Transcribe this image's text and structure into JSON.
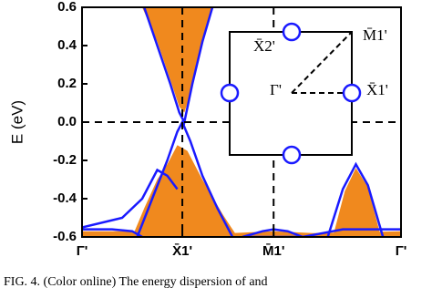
{
  "chart_data": {
    "type": "band",
    "ylabel": "E (eV)",
    "xlim": [
      0,
      3.18
    ],
    "ylim": [
      -0.6,
      0.6
    ],
    "xticks": [
      {
        "value": 0,
        "label": "Γ'"
      },
      {
        "value": 1,
        "label": "X̄1'"
      },
      {
        "value": 1.91,
        "label": "M̄1'"
      },
      {
        "value": 3.18,
        "label": "Γ'"
      }
    ],
    "yticks": [
      -0.6,
      -0.4,
      -0.2,
      {
        "value": 0,
        "label": "0.0"
      },
      0.2,
      0.4,
      0.6
    ],
    "dashed_lines": true,
    "areas": [
      {
        "color": "#f0891e",
        "fill_to": "top",
        "x": [
          0.6,
          0.75,
          0.88,
          0.97,
          1.02,
          1.1,
          1.2,
          1.3
        ],
        "values": [
          0.6,
          0.42,
          0.22,
          0.08,
          0.05,
          0.18,
          0.4,
          0.6
        ]
      },
      {
        "color": "#f0891e",
        "fill_to": "bottom",
        "x": [
          0.5,
          0.62,
          0.75,
          0.85,
          0.95,
          1.05,
          1.2,
          1.4,
          1.55
        ],
        "values": [
          -0.6,
          -0.45,
          -0.3,
          -0.22,
          -0.12,
          -0.15,
          -0.3,
          -0.48,
          -0.6
        ]
      },
      {
        "color": "#f0891e",
        "fill_to": "bottom",
        "x": [
          0,
          0.5,
          1.5,
          1.91,
          2.3,
          3.18
        ],
        "values": [
          -0.57,
          -0.57,
          -0.58,
          -0.57,
          -0.58,
          -0.57
        ]
      },
      {
        "color": "#f0891e",
        "fill_to": "bottom",
        "x": [
          2.5,
          2.62,
          2.73,
          2.85,
          2.98
        ],
        "values": [
          -0.6,
          -0.36,
          -0.24,
          -0.34,
          -0.6
        ]
      }
    ],
    "series": [
      {
        "color": "#1a1aff",
        "x": [
          0.62,
          0.75,
          0.88,
          0.97,
          1.02,
          1.1,
          1.2,
          1.3
        ],
        "values": [
          0.6,
          0.4,
          0.2,
          0.05,
          0.0,
          0.2,
          0.42,
          0.6
        ]
      },
      {
        "color": "#1a1aff",
        "x": [
          0.55,
          0.7,
          0.85,
          0.95,
          1.0,
          1.08,
          1.2,
          1.35,
          1.5
        ],
        "values": [
          -0.6,
          -0.4,
          -0.2,
          -0.05,
          0.0,
          -0.1,
          -0.28,
          -0.45,
          -0.6
        ]
      },
      {
        "color": "#1a1aff",
        "x": [
          0,
          0.3,
          0.5,
          0.6
        ],
        "values": [
          -0.56,
          -0.56,
          -0.57,
          -0.6
        ]
      },
      {
        "color": "#1a1aff",
        "x": [
          0,
          0.4,
          0.6,
          0.75,
          0.85,
          0.95
        ],
        "values": [
          -0.55,
          -0.5,
          -0.4,
          -0.25,
          -0.28,
          -0.35
        ]
      },
      {
        "color": "#1a1aff",
        "x": [
          1.6,
          1.8,
          1.91,
          2.05,
          2.2
        ],
        "values": [
          -0.6,
          -0.57,
          -0.56,
          -0.57,
          -0.6
        ]
      },
      {
        "color": "#1a1aff",
        "x": [
          2.45,
          2.6,
          2.73,
          2.85,
          3.0
        ],
        "values": [
          -0.6,
          -0.35,
          -0.22,
          -0.33,
          -0.6
        ]
      },
      {
        "color": "#1a1aff",
        "x": [
          1.6,
          2.2,
          2.6,
          3.18
        ],
        "values": [
          -0.6,
          -0.6,
          -0.56,
          -0.56
        ]
      }
    ],
    "inset": {
      "labels": [
        "X̄2'",
        "M̄1'",
        "Γ'",
        "X̄1'"
      ]
    },
    "caption": "FIG. 4. (Color online) The energy dispersion of and"
  }
}
